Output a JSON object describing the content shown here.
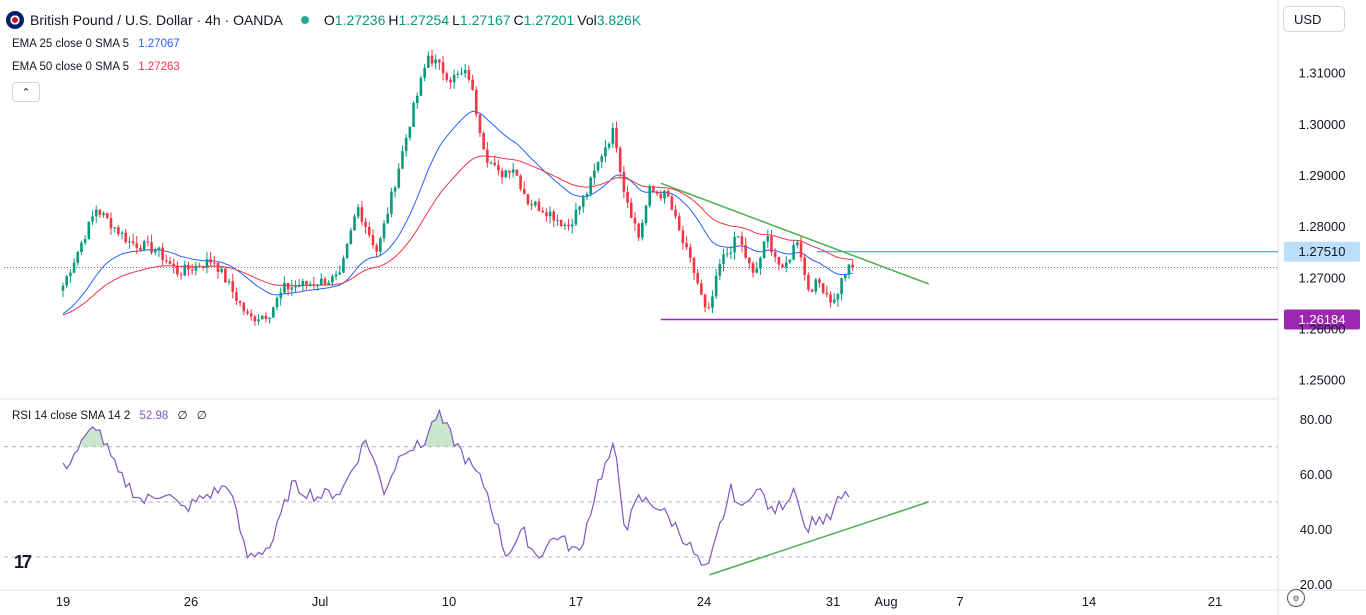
{
  "header": {
    "title": "British Pound / U.S. Dollar · 4h · OANDA",
    "ohlc": [
      {
        "key": "O",
        "value": "1.27236"
      },
      {
        "key": "H",
        "value": "1.27254"
      },
      {
        "key": "L",
        "value": "1.27167"
      },
      {
        "key": "C",
        "value": "1.27201"
      },
      {
        "key": "Vol",
        "value": "3.826K"
      }
    ],
    "currency": "USD",
    "collapse_icon": "chevron-up-icon"
  },
  "indicators": {
    "ema25": {
      "label": "EMA 25 close 0 SMA 5",
      "value": "1.27067",
      "color": "#2962ff"
    },
    "ema50": {
      "label": "EMA 50 close 0 SMA 5",
      "value": "1.27263",
      "color": "#f23645"
    },
    "rsi": {
      "label": "RSI 14 close SMA 14 2",
      "value": "52.98",
      "extra1": "∅",
      "extra2": "∅",
      "color": "#7e57c2"
    }
  },
  "colors": {
    "up": "#089981",
    "down": "#f23645",
    "trendline": "#4caf50",
    "support": "#9c27b0",
    "resistance": "#2196f3",
    "grid": "#e0e3eb"
  },
  "chart_data": [
    {
      "type": "line",
      "subtype": "candlestick",
      "x_tick_labels": [
        "19",
        "26",
        "Jul",
        "10",
        "17",
        "24",
        "31",
        "Aug",
        "7",
        "14",
        "21"
      ],
      "ylim": [
        1.2465,
        1.3165
      ],
      "y_tick_labels": [
        "1.25000",
        "1.26000",
        "1.27000",
        "1.28000",
        "1.29000",
        "1.30000",
        "1.31000"
      ],
      "y_ticks": [
        1.25,
        1.26,
        1.27,
        1.28,
        1.29,
        1.3,
        1.31
      ],
      "grid": false,
      "price_levels": [
        {
          "label": "1.27510",
          "value": 1.2751,
          "color": "#2196f3",
          "x_start": 34.05
        },
        {
          "label": "1.26184",
          "value": 1.26184,
          "color": "#9c27b0",
          "x_start": 27.0
        }
      ],
      "last_price_line": 1.27201,
      "trendline": {
        "from": [
          27.0,
          1.2885
        ],
        "to": [
          39.1,
          1.2688
        ]
      },
      "key_points": [
        {
          "x": 0.0,
          "y": 1.2685
        },
        {
          "x": 1.5,
          "y": 1.2835
        },
        {
          "x": 3.0,
          "y": 1.277
        },
        {
          "x": 4.2,
          "y": 1.2755
        },
        {
          "x": 5.2,
          "y": 1.271
        },
        {
          "x": 6.8,
          "y": 1.2735
        },
        {
          "x": 8.4,
          "y": 1.262
        },
        {
          "x": 9.3,
          "y": 1.263
        },
        {
          "x": 10.0,
          "y": 1.268
        },
        {
          "x": 11.3,
          "y": 1.269
        },
        {
          "x": 12.5,
          "y": 1.27
        },
        {
          "x": 13.3,
          "y": 1.284
        },
        {
          "x": 14.2,
          "y": 1.275
        },
        {
          "x": 14.9,
          "y": 1.287
        },
        {
          "x": 15.7,
          "y": 1.301
        },
        {
          "x": 16.5,
          "y": 1.3135
        },
        {
          "x": 17.5,
          "y": 1.309
        },
        {
          "x": 18.3,
          "y": 1.31
        },
        {
          "x": 19.1,
          "y": 1.294
        },
        {
          "x": 19.7,
          "y": 1.29
        },
        {
          "x": 20.3,
          "y": 1.292
        },
        {
          "x": 21.0,
          "y": 1.285
        },
        {
          "x": 21.9,
          "y": 1.283
        },
        {
          "x": 22.8,
          "y": 1.28
        },
        {
          "x": 23.6,
          "y": 1.286
        },
        {
          "x": 24.4,
          "y": 1.295
        },
        {
          "x": 24.9,
          "y": 1.299
        },
        {
          "x": 25.3,
          "y": 1.288
        },
        {
          "x": 26.0,
          "y": 1.278
        },
        {
          "x": 26.5,
          "y": 1.287
        },
        {
          "x": 27.3,
          "y": 1.286
        },
        {
          "x": 27.9,
          "y": 1.278
        },
        {
          "x": 28.6,
          "y": 1.27
        },
        {
          "x": 29.1,
          "y": 1.262
        },
        {
          "x": 29.7,
          "y": 1.273
        },
        {
          "x": 30.5,
          "y": 1.278
        },
        {
          "x": 31.2,
          "y": 1.27
        },
        {
          "x": 31.8,
          "y": 1.278
        },
        {
          "x": 32.5,
          "y": 1.271
        },
        {
          "x": 33.2,
          "y": 1.278
        },
        {
          "x": 33.6,
          "y": 1.268
        },
        {
          "x": 34.2,
          "y": 1.269
        },
        {
          "x": 34.8,
          "y": 1.265
        },
        {
          "x": 35.3,
          "y": 1.271
        },
        {
          "x": 35.6,
          "y": 1.272
        }
      ]
    },
    {
      "type": "line",
      "title": "RSI 14 close SMA 14 2",
      "x_tick_labels": [
        "19",
        "26",
        "Jul",
        "10",
        "17",
        "24",
        "31",
        "Aug",
        "7",
        "14",
        "21"
      ],
      "ylim": [
        18,
        87
      ],
      "y_tick_labels": [
        "20.00",
        "40.00",
        "60.00",
        "80.00"
      ],
      "y_ticks": [
        20,
        40,
        60,
        80
      ],
      "bands": [
        30,
        50,
        70
      ],
      "trendline": {
        "from": [
          29.2,
          23.5
        ],
        "to": [
          39.1,
          50
        ]
      },
      "key_points": [
        {
          "x": 0.0,
          "y": 62
        },
        {
          "x": 1.5,
          "y": 78
        },
        {
          "x": 2.5,
          "y": 60
        },
        {
          "x": 3.6,
          "y": 50
        },
        {
          "x": 4.6,
          "y": 54
        },
        {
          "x": 5.4,
          "y": 47
        },
        {
          "x": 6.4,
          "y": 52
        },
        {
          "x": 7.5,
          "y": 56
        },
        {
          "x": 8.3,
          "y": 30
        },
        {
          "x": 9.4,
          "y": 34
        },
        {
          "x": 10.3,
          "y": 56
        },
        {
          "x": 11.5,
          "y": 52
        },
        {
          "x": 12.6,
          "y": 54
        },
        {
          "x": 13.7,
          "y": 73
        },
        {
          "x": 14.5,
          "y": 54
        },
        {
          "x": 15.4,
          "y": 70
        },
        {
          "x": 16.2,
          "y": 70
        },
        {
          "x": 16.9,
          "y": 82
        },
        {
          "x": 18.0,
          "y": 68
        },
        {
          "x": 19.1,
          "y": 55
        },
        {
          "x": 20.0,
          "y": 31
        },
        {
          "x": 20.8,
          "y": 39
        },
        {
          "x": 21.4,
          "y": 30
        },
        {
          "x": 22.3,
          "y": 38
        },
        {
          "x": 23.3,
          "y": 31
        },
        {
          "x": 24.2,
          "y": 58
        },
        {
          "x": 24.9,
          "y": 70
        },
        {
          "x": 25.4,
          "y": 40
        },
        {
          "x": 26.0,
          "y": 51
        },
        {
          "x": 26.8,
          "y": 49
        },
        {
          "x": 27.6,
          "y": 42
        },
        {
          "x": 28.3,
          "y": 34
        },
        {
          "x": 28.8,
          "y": 27
        },
        {
          "x": 29.1,
          "y": 24
        },
        {
          "x": 29.7,
          "y": 42
        },
        {
          "x": 30.2,
          "y": 55
        },
        {
          "x": 30.7,
          "y": 46
        },
        {
          "x": 31.1,
          "y": 55
        },
        {
          "x": 31.6,
          "y": 53
        },
        {
          "x": 32.0,
          "y": 46
        },
        {
          "x": 32.6,
          "y": 50
        },
        {
          "x": 33.1,
          "y": 56
        },
        {
          "x": 33.5,
          "y": 40
        },
        {
          "x": 34.0,
          "y": 44
        },
        {
          "x": 34.6,
          "y": 43
        },
        {
          "x": 35.0,
          "y": 50
        },
        {
          "x": 35.5,
          "y": 53
        }
      ]
    }
  ]
}
